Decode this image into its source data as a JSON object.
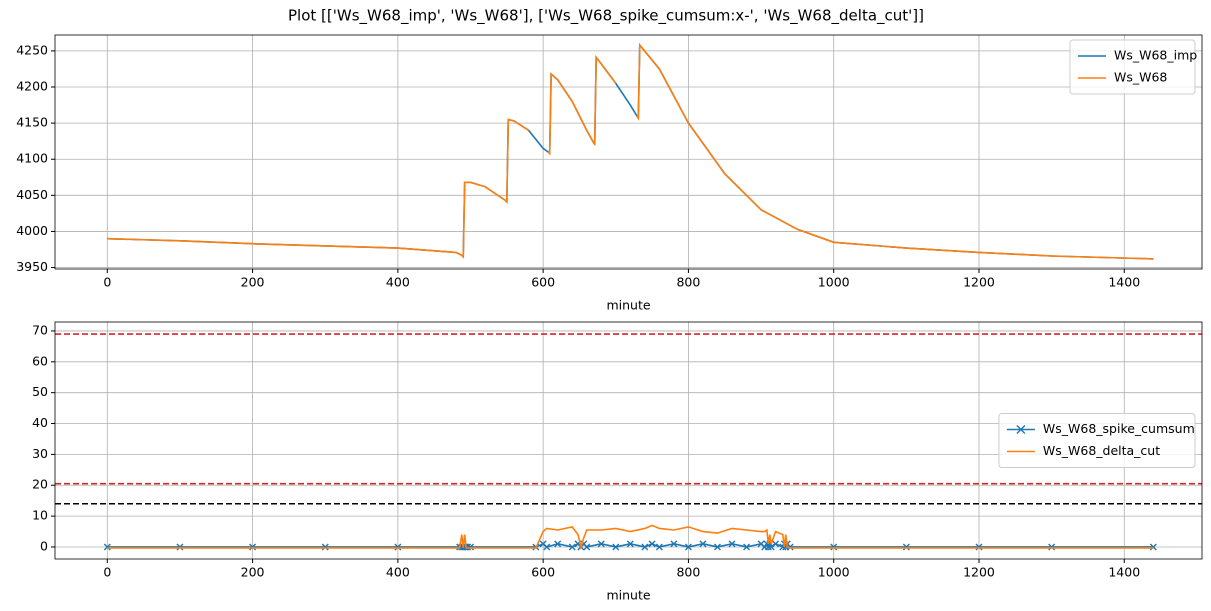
{
  "title": "Plot [['Ws_W68_imp', 'Ws_W68'], ['Ws_W68_spike_cumsum:x-', 'Ws_W68_delta_cut']]",
  "chart_data": [
    {
      "type": "line",
      "xlabel": "minute",
      "x": [
        0,
        100,
        200,
        300,
        400,
        480,
        488,
        490,
        492,
        500,
        520,
        548,
        550,
        552,
        560,
        580,
        600,
        607,
        609,
        611,
        620,
        640,
        660,
        670,
        671,
        673,
        680,
        700,
        720,
        729,
        731,
        733,
        760,
        800,
        850,
        900,
        950,
        1000,
        1100,
        1200,
        1300,
        1440
      ],
      "series": [
        {
          "name": "Ws_W68_imp",
          "color": "#1f77b4",
          "values": [
            3990,
            3987,
            3983,
            3980,
            3977,
            3971,
            3967,
            3965,
            4068,
            4068,
            4062,
            4043,
            4041,
            4155,
            4153,
            4140,
            4115,
            4110,
            4108,
            4218,
            4210,
            4180,
            4140,
            4122,
            4121,
            4241,
            4232,
            4205,
            4175,
            4160,
            4157,
            4258,
            4225,
            4150,
            4080,
            4030,
            4003,
            3985,
            3977,
            3971,
            3966,
            3962
          ]
        },
        {
          "name": "Ws_W68",
          "color": "#ff7f0e",
          "values": [
            3990,
            3987,
            3983,
            3980,
            3977,
            3971,
            3967,
            3965,
            4068,
            4068,
            4062,
            4043,
            4041,
            4155,
            4153,
            4140,
            null,
            4110,
            4108,
            4218,
            4210,
            4180,
            4140,
            4122,
            4121,
            4241,
            4232,
            4205,
            null,
            4160,
            4157,
            4258,
            4225,
            4150,
            4080,
            4030,
            4003,
            3985,
            3977,
            3971,
            3966,
            3962
          ]
        }
      ],
      "xlim": [
        -72,
        1507
      ],
      "xticks": [
        0,
        200,
        400,
        600,
        800,
        1000,
        1200,
        1400
      ],
      "ylim": [
        3948,
        4272
      ],
      "yticks": [
        3950,
        4000,
        4050,
        4100,
        4150,
        4200,
        4250
      ],
      "grid": true,
      "legend": "upper right"
    },
    {
      "type": "line",
      "xlabel": "minute",
      "x": [
        0,
        100,
        200,
        300,
        400,
        485,
        488,
        490,
        492,
        494,
        496,
        500,
        590,
        600,
        605,
        620,
        640,
        648,
        652,
        656,
        660,
        680,
        700,
        720,
        740,
        750,
        760,
        780,
        800,
        820,
        840,
        860,
        880,
        900,
        905,
        908,
        910,
        912,
        914,
        920,
        930,
        932,
        934,
        936,
        940,
        1000,
        1100,
        1200,
        1300,
        1440
      ],
      "series": [
        {
          "name": "Ws_W68_spike_cumsum",
          "color": "#1f77b4",
          "marker": "x",
          "values": [
            0,
            0,
            0,
            0,
            0,
            0,
            0,
            0,
            0,
            0,
            0,
            0,
            0,
            1,
            0,
            1,
            0,
            1,
            0,
            1,
            0,
            1,
            0,
            1,
            0,
            1,
            0,
            1,
            0,
            1,
            0,
            1,
            0,
            1,
            0,
            1,
            0,
            1,
            0,
            1,
            0,
            1,
            0,
            1,
            0,
            0,
            0,
            0,
            0,
            0
          ]
        },
        {
          "name": "Ws_W68_delta_cut",
          "color": "#ff7f0e",
          "values": [
            -0.3,
            -0.3,
            -0.3,
            -0.3,
            -0.3,
            -0.3,
            4,
            -0.3,
            4,
            -0.3,
            -0.3,
            -0.3,
            -0.3,
            5,
            6,
            5.5,
            6.5,
            4,
            0,
            3,
            5.5,
            5.5,
            6,
            5,
            6,
            7,
            6,
            5.5,
            6.5,
            5,
            4.5,
            6,
            5.5,
            5,
            5,
            5.5,
            1,
            4,
            1,
            5,
            4,
            0,
            4,
            0,
            -0.3,
            -0.3,
            -0.3,
            -0.3,
            -0.3,
            -0.3
          ]
        }
      ],
      "hlines": [
        {
          "value": 69,
          "color": "#d62728"
        },
        {
          "value": 20.5,
          "color": "#d62728"
        },
        {
          "value": 14,
          "color": "#000000"
        }
      ],
      "xlim": [
        -72,
        1507
      ],
      "xticks": [
        0,
        200,
        400,
        600,
        800,
        1000,
        1200,
        1400
      ],
      "ylim": [
        -3.9,
        72.9
      ],
      "yticks": [
        0,
        10,
        20,
        30,
        40,
        50,
        60,
        70
      ],
      "grid": true,
      "legend": "center right"
    }
  ]
}
